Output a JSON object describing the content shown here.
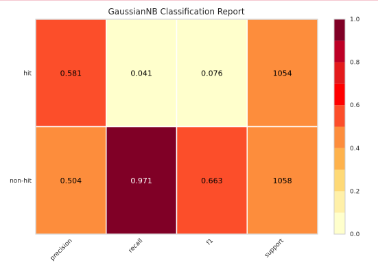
{
  "chart_data": {
    "type": "heatmap",
    "title": "GaussianNB Classification Report",
    "rows": [
      "hit",
      "non-hit"
    ],
    "columns": [
      "precision",
      "recall",
      "f1",
      "support"
    ],
    "cells": [
      [
        "0.581",
        "0.041",
        "0.076",
        "1054"
      ],
      [
        "0.504",
        "0.971",
        "0.663",
        "1058"
      ]
    ],
    "color_values": [
      [
        0.581,
        0.041,
        0.076,
        1054
      ],
      [
        0.504,
        0.971,
        0.663,
        1058
      ]
    ],
    "colorbar": {
      "range": [
        0.0,
        1.0
      ],
      "tick_labels": [
        "0.0",
        "0.2",
        "0.4",
        "0.6",
        "0.8",
        "1.0"
      ],
      "levels": [
        "#ffffcc",
        "#fff0a8",
        "#fed976",
        "#feb24c",
        "#fd8d3c",
        "#fc4e2a",
        "#ff0000",
        "#e31a1c",
        "#bd0026",
        "#800026"
      ]
    },
    "cell_colors": [
      [
        "#fc4e2a",
        "#ffffcc",
        "#ffffcc",
        "#fd8d3c"
      ],
      [
        "#fd8d3c",
        "#800026",
        "#fc4e2a",
        "#fd8d3c"
      ]
    ],
    "text_colors": [
      [
        "#000000",
        "#000000",
        "#000000",
        "#000000"
      ],
      [
        "#000000",
        "#ffffff",
        "#000000",
        "#000000"
      ]
    ],
    "grid": false
  }
}
